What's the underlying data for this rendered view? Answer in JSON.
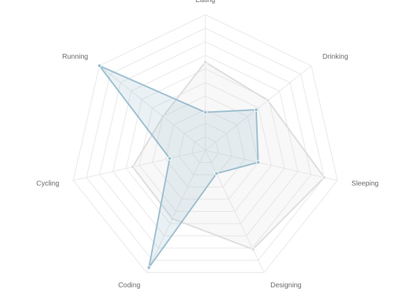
{
  "chart_data": {
    "type": "radar",
    "title": "",
    "labels": [
      "Eating",
      "Drinking",
      "Sleeping",
      "Designing",
      "Coding",
      "Cycling",
      "Running"
    ],
    "scale": {
      "min": 0,
      "max": 100,
      "step": 10,
      "grid": true,
      "tick_labels_visible": false
    },
    "legend": "none",
    "series": [
      {
        "values": [
          65,
          59,
          90,
          81,
          56,
          55,
          40
        ],
        "stroke": "#dcdcdc",
        "fill": "rgba(220,220,220,0.2)",
        "point": "#dcdcdc"
      },
      {
        "values": [
          28,
          48,
          40,
          19,
          96,
          27,
          100
        ],
        "stroke": "#97bbcd",
        "fill": "rgba(151,187,205,0.2)",
        "point": "#97bbcd"
      }
    ],
    "colors": {
      "grid": "#e6e6e6",
      "label": "#666666"
    }
  }
}
